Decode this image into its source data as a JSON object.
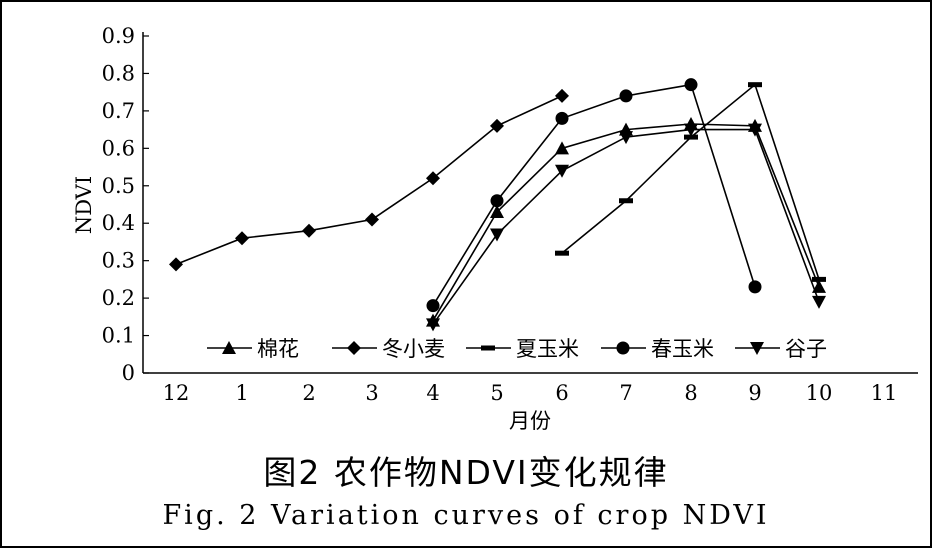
{
  "chart_data": {
    "type": "line",
    "xlabel": "月份",
    "ylabel": "NDVI",
    "x_ticks": [
      "12",
      "1",
      "2",
      "3",
      "4",
      "5",
      "6",
      "7",
      "8",
      "9",
      "10",
      "11"
    ],
    "y_ticks": [
      "0",
      "0.1",
      "0.2",
      "0.3",
      "0.4",
      "0.5",
      "0.6",
      "0.7",
      "0.8",
      "0.9"
    ],
    "ylim": [
      0,
      0.9
    ],
    "grid": false,
    "legend_position": "bottom-inside",
    "series": [
      {
        "name": "棉花",
        "marker": "triangle-up",
        "x": [
          "4",
          "5",
          "6",
          "7",
          "8",
          "9",
          "10"
        ],
        "y": [
          0.14,
          0.43,
          0.6,
          0.65,
          0.665,
          0.66,
          0.23
        ]
      },
      {
        "name": "冬小麦",
        "marker": "diamond",
        "x": [
          "12",
          "1",
          "2",
          "3",
          "4",
          "5",
          "6"
        ],
        "y": [
          0.29,
          0.36,
          0.38,
          0.41,
          0.52,
          0.66,
          0.74
        ]
      },
      {
        "name": "夏玉米",
        "marker": "dash",
        "x": [
          "6",
          "7",
          "8",
          "9",
          "10"
        ],
        "y": [
          0.32,
          0.46,
          0.63,
          0.77,
          0.25
        ]
      },
      {
        "name": "春玉米",
        "marker": "circle",
        "x": [
          "4",
          "5",
          "6",
          "7",
          "8",
          "9"
        ],
        "y": [
          0.18,
          0.46,
          0.68,
          0.74,
          0.77,
          0.23
        ]
      },
      {
        "name": "谷子",
        "marker": "triangle-down",
        "x": [
          "4",
          "5",
          "6",
          "7",
          "8",
          "9",
          "10"
        ],
        "y": [
          0.13,
          0.37,
          0.54,
          0.63,
          0.65,
          0.65,
          0.19
        ]
      }
    ]
  },
  "caption": {
    "cn": "图2 农作物NDVI变化规律",
    "en": "Fig. 2 Variation curves of crop NDVI"
  }
}
